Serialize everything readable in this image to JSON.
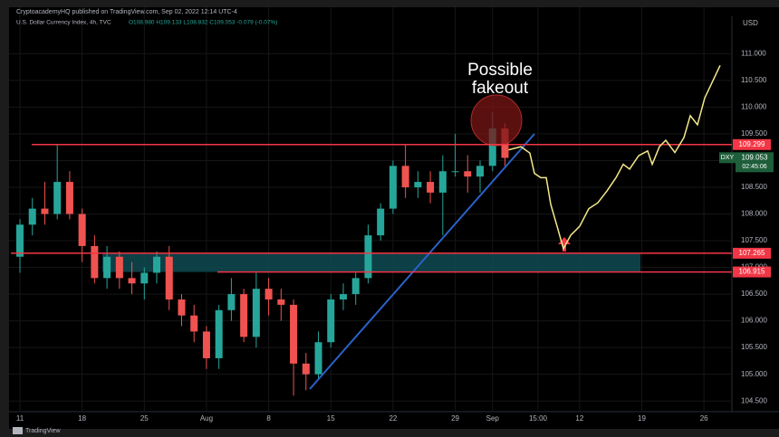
{
  "header": "CryptoacademyHQ published on TradingView.com, Sep 02, 2022 12:14 UTC-4",
  "chart_data": {
    "type": "candlestick",
    "title": "U.S. Dollar Currency Index, 4h, TVC",
    "legend_ohlc": "O108.980 H109.133 L108.832 C109.053 -0.079 (-0.07%)",
    "y_axis_label": "USD",
    "ylim": [
      104.3,
      111.7
    ],
    "yticks": [
      {
        "value": 111,
        "label": "111.000"
      },
      {
        "value": 110.5,
        "label": "110.500"
      },
      {
        "value": 110,
        "label": "110.000"
      },
      {
        "value": 109.5,
        "label": "109.500"
      },
      {
        "value": 109,
        "label": "109.000"
      },
      {
        "value": 108.5,
        "label": "108.500"
      },
      {
        "value": 108,
        "label": "108.000"
      },
      {
        "value": 107.5,
        "label": "107.500"
      },
      {
        "value": 107,
        "label": "107.000"
      },
      {
        "value": 106.5,
        "label": "106.500"
      },
      {
        "value": 106,
        "label": "106.000"
      },
      {
        "value": 105.5,
        "label": "105.500"
      },
      {
        "value": 105,
        "label": "105.000"
      },
      {
        "value": 104.5,
        "label": "104.500"
      }
    ],
    "xticks": [
      {
        "value": 0,
        "label": "11"
      },
      {
        "value": 5,
        "label": "18"
      },
      {
        "value": 10,
        "label": "25"
      },
      {
        "value": 15,
        "label": "Aug"
      },
      {
        "value": 20,
        "label": "8"
      },
      {
        "value": 25,
        "label": "15"
      },
      {
        "value": 30,
        "label": "22"
      },
      {
        "value": 35,
        "label": "29"
      },
      {
        "value": 38,
        "label": "Sep"
      },
      {
        "value": 41.66,
        "label": "15:00"
      },
      {
        "value": 45,
        "label": "12"
      },
      {
        "value": 50,
        "label": "19"
      },
      {
        "value": 55,
        "label": "26"
      }
    ],
    "up_color": "#26a69a",
    "down_color": "#ef5350",
    "grid": true,
    "open": [
      107.2,
      107.8,
      108.1,
      108.0,
      108.6,
      108.0,
      107.4,
      106.8,
      107.2,
      106.8,
      106.7,
      106.9,
      107.2,
      106.4,
      106.1,
      105.8,
      105.3,
      106.2,
      106.5,
      105.7,
      106.6,
      106.4,
      106.3,
      105.2,
      105.0,
      105.6,
      106.4,
      106.5,
      106.8,
      107.6,
      108.1,
      108.9,
      108.5,
      108.6,
      108.4,
      108.8,
      108.8,
      108.7,
      108.9,
      109.6
    ],
    "high": [
      107.9,
      108.3,
      108.6,
      109.3,
      108.8,
      108.1,
      107.6,
      107.4,
      107.3,
      107.1,
      107.0,
      107.3,
      107.4,
      106.5,
      106.3,
      105.9,
      106.3,
      106.8,
      106.6,
      106.9,
      106.8,
      106.6,
      106.4,
      105.4,
      105.8,
      106.5,
      106.7,
      106.9,
      107.8,
      108.2,
      109.0,
      109.3,
      108.8,
      108.8,
      109.1,
      109.5,
      109.1,
      109.0,
      109.9,
      109.7
    ],
    "low": [
      106.9,
      107.6,
      107.8,
      107.9,
      107.9,
      107.1,
      106.7,
      106.6,
      106.6,
      106.5,
      106.4,
      106.7,
      106.2,
      105.9,
      105.6,
      105.1,
      105.1,
      106.0,
      105.6,
      105.5,
      106.1,
      106.0,
      104.6,
      104.7,
      104.9,
      105.5,
      106.2,
      106.3,
      106.7,
      107.5,
      108.0,
      108.3,
      108.3,
      108.2,
      107.6,
      108.7,
      108.4,
      108.4,
      108.8,
      108.9
    ],
    "close": [
      107.8,
      108.1,
      108.0,
      108.6,
      108.0,
      107.4,
      106.8,
      107.2,
      106.8,
      106.7,
      106.9,
      107.2,
      106.4,
      106.1,
      105.8,
      105.3,
      106.2,
      106.5,
      105.7,
      106.6,
      106.4,
      106.3,
      105.2,
      105.0,
      105.6,
      106.4,
      106.5,
      106.8,
      107.6,
      108.1,
      108.9,
      108.5,
      108.6,
      108.4,
      108.8,
      108.8,
      108.7,
      108.9,
      109.6,
      109.05
    ],
    "levels": [
      109.299,
      107.265,
      106.915
    ],
    "level_color": "#f23645",
    "zone_color": "#0f4a52",
    "symbol": "DXY",
    "last_price": 109.053,
    "countdown": "02:45:06",
    "projection": {
      "color": "#f5e98a",
      "x": [
        39.3,
        40.28,
        41.0,
        41.37,
        41.88,
        42.32,
        42.68,
        43.19,
        43.7,
        44.28,
        45.01,
        45.74,
        46.47,
        47.2,
        47.93,
        48.51,
        49.02,
        49.75,
        50.47,
        50.84,
        51.42,
        51.93,
        52.66,
        53.39,
        53.9,
        54.48,
        55.06,
        55.57,
        56.3
      ],
      "values": [
        109.2,
        109.26,
        109.14,
        108.76,
        108.68,
        108.68,
        108.18,
        107.77,
        107.35,
        107.6,
        107.77,
        108.1,
        108.21,
        108.43,
        108.68,
        108.93,
        108.84,
        109.09,
        109.18,
        108.93,
        109.26,
        109.38,
        109.15,
        109.43,
        109.84,
        109.67,
        110.17,
        110.42,
        110.78
      ]
    },
    "annotation": [
      "Possible",
      "fakeout"
    ]
  },
  "footer": "TradingView"
}
